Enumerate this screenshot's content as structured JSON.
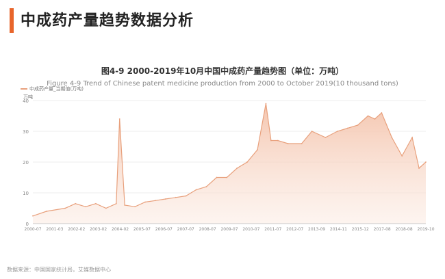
{
  "header": {
    "title": "中成药产量趋势数据分析"
  },
  "chart_data": {
    "type": "area",
    "title": "图4-9 2000-2019年10月中国中成药产量趋势图（单位：万吨）",
    "subtitle": "Figure 4-9 Trend of Chinese patent medicine production from 2000 to October 2019(10 thousand tons)",
    "legend": "中成药产量_当期值(万吨)",
    "ylabel": "万吨",
    "ylim": [
      0,
      40
    ],
    "yticks": [
      0,
      10,
      20,
      30,
      40
    ],
    "grid": true,
    "xlabels": [
      "2000-07",
      "2001-03",
      "2002-02",
      "2003-02",
      "2004-02",
      "2005-07",
      "2006-07",
      "2007-07",
      "2008-07",
      "2009-07",
      "2010-07",
      "2011-07",
      "2012-07",
      "2013-09",
      "2014-11",
      "2015-12",
      "2017-08",
      "2018-08",
      "2019-10"
    ],
    "x": [
      "2000-07",
      "2001-03",
      "2002-02",
      "2002-08",
      "2003-02",
      "2003-08",
      "2004-02",
      "2004-08",
      "2004-10",
      "2005-01",
      "2005-07",
      "2006-01",
      "2006-07",
      "2007-01",
      "2007-07",
      "2008-01",
      "2008-07",
      "2009-01",
      "2009-07",
      "2010-01",
      "2010-07",
      "2011-01",
      "2011-07",
      "2011-12",
      "2012-03",
      "2012-07",
      "2013-01",
      "2013-09",
      "2014-03",
      "2014-11",
      "2015-06",
      "2015-12",
      "2016-06",
      "2016-12",
      "2017-04",
      "2017-08",
      "2018-02",
      "2018-08",
      "2019-02",
      "2019-06",
      "2019-10"
    ],
    "values": [
      2.5,
      4,
      5,
      6.5,
      5.5,
      6.5,
      5,
      6.5,
      34,
      6,
      5.5,
      7,
      7.5,
      8,
      8.5,
      9,
      11,
      12,
      15,
      15,
      18,
      20,
      24,
      39,
      27,
      27,
      26,
      26,
      30,
      28,
      30,
      31,
      32,
      35,
      34,
      36,
      28,
      22,
      28,
      18,
      20
    ]
  },
  "footer": {
    "source": "数据来源：中国国家统计局，艾媒数据中心"
  },
  "colors": {
    "accent": "#e8652b",
    "line": "#e8a07c",
    "fill": "#f6d3c2",
    "grid": "#dddddd"
  }
}
